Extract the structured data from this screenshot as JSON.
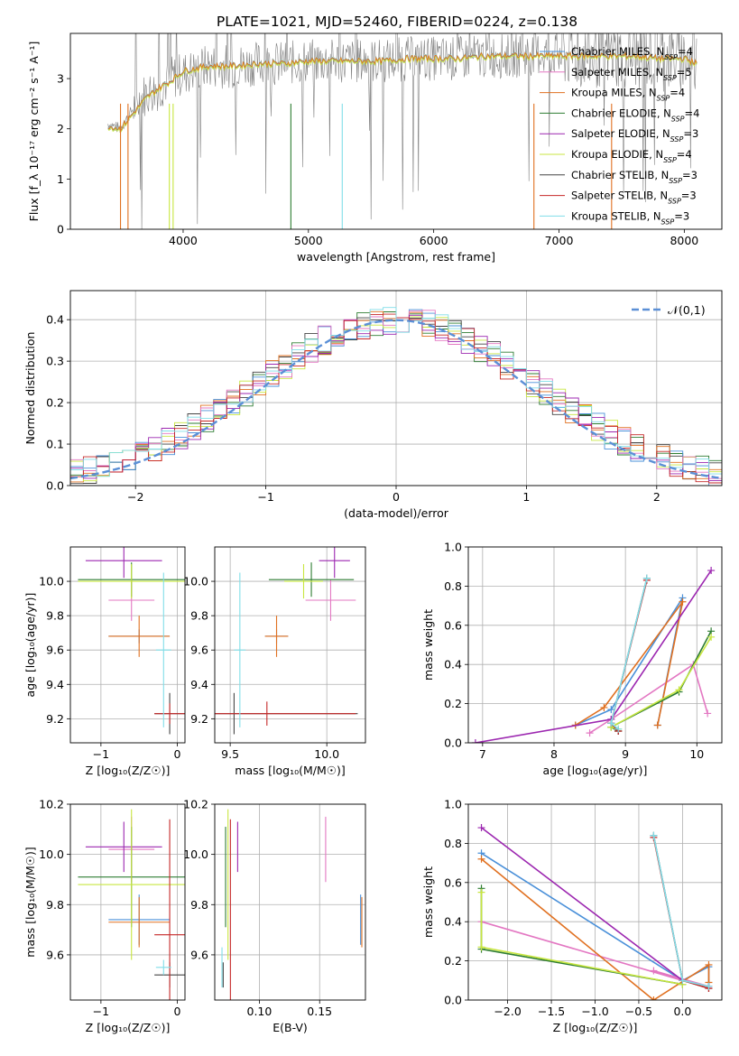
{
  "figure_title": "PLATE=1021, MJD=52460, FIBERID=0224, z=0.138",
  "series_names": [
    "Chabrier MILES, N_SSP=4",
    "Salpeter MILES, N_SSP=5",
    "Kroupa MILES, N_SSP=4",
    "Chabrier ELODIE, N_SSP=4",
    "Salpeter ELODIE, N_SSP=3",
    "Kroupa ELODIE, N_SSP=4",
    "Chabrier STELIB, N_SSP=3",
    "Salpeter STELIB, N_SSP=3",
    "Kroupa STELIB, N_SSP=3"
  ],
  "series_colors": [
    "#4a90d9",
    "#e377c2",
    "#e07020",
    "#2e7d32",
    "#9c27b0",
    "#c8e640",
    "#444444",
    "#c62828",
    "#80dee8"
  ],
  "chart_data": [
    {
      "id": "spectrum",
      "type": "line",
      "xlabel": "wavelength [Angstrom, rest frame]",
      "ylabel": "Flux [f_λ 10⁻¹⁷ erg cm⁻² s⁻¹ A⁻¹]",
      "xlim": [
        3100,
        8300
      ],
      "ylim": [
        0,
        3.9
      ],
      "xticks": [
        4000,
        5000,
        6000,
        7000,
        8000
      ],
      "yticks": [
        0,
        1,
        2,
        3
      ],
      "grid": false,
      "legend": "top-right",
      "data_series": {
        "name": "",
        "color": "#808080",
        "x": [
          3400,
          3500,
          3600,
          3700,
          3800,
          3900,
          4000,
          4200,
          4400,
          4600,
          4800,
          5000,
          5200,
          5400,
          5600,
          5800,
          6000,
          6200,
          6400,
          6600,
          6800,
          7000,
          7200,
          7400,
          7600,
          7800,
          8000,
          8100
        ],
        "y": [
          2.1,
          2.0,
          2.4,
          2.7,
          2.8,
          3.0,
          3.1,
          3.25,
          3.25,
          3.3,
          3.3,
          3.35,
          3.35,
          3.35,
          3.35,
          3.4,
          3.4,
          3.4,
          3.45,
          3.45,
          3.5,
          3.5,
          3.45,
          3.5,
          3.45,
          3.45,
          3.4,
          3.3
        ]
      },
      "model_series": {
        "x": [
          3400,
          3500,
          3550,
          3600,
          3700,
          3800,
          3900,
          4000,
          4200,
          4400,
          4600,
          4800,
          5000,
          5200,
          5400,
          5600,
          5800,
          6000,
          6200,
          6400,
          6600,
          6800,
          7000,
          7200,
          7400,
          7600,
          7800,
          8000,
          8100
        ],
        "y": [
          2.05,
          2.0,
          2.15,
          2.3,
          2.6,
          2.8,
          2.95,
          3.15,
          3.25,
          3.25,
          3.3,
          3.3,
          3.35,
          3.35,
          3.35,
          3.35,
          3.4,
          3.4,
          3.4,
          3.45,
          3.45,
          3.45,
          3.45,
          3.45,
          3.45,
          3.45,
          3.4,
          3.4,
          3.3
        ]
      }
    },
    {
      "id": "residuals",
      "type": "histogram",
      "xlabel": "(data-model)/error",
      "ylabel": "Normed distribution",
      "xlim": [
        -2.5,
        2.5
      ],
      "ylim": [
        0,
        0.47
      ],
      "xticks": [
        -2,
        -1,
        0,
        1,
        2
      ],
      "yticks": [
        0.0,
        0.1,
        0.2,
        0.3,
        0.4
      ],
      "grid": true,
      "legend": "top-right",
      "reference_curve": {
        "name": "𝒩(0,1)",
        "color": "#5b8fd6",
        "mean": 0,
        "sigma": 1
      },
      "bin_width": 0.1
    },
    {
      "id": "age_vs_Z",
      "type": "errorbar",
      "xlabel": "Z [log₁₀(Z/Z☉)]",
      "ylabel": "age  [log₁₀(age/yr)]",
      "xlim": [
        -1.4,
        0.1
      ],
      "ylim": [
        9.06,
        10.2
      ],
      "xticks": [
        -1,
        0
      ],
      "yticks": [
        9.2,
        9.4,
        9.6,
        9.8,
        10.0
      ],
      "grid": true,
      "points": [
        {
          "s": 0,
          "x": -0.5,
          "xerr": 0.4,
          "y": 9.68,
          "yerr": 0.04
        },
        {
          "s": 1,
          "x": -0.6,
          "xerr": 0.3,
          "y": 9.89,
          "yerr": 0.12
        },
        {
          "s": 2,
          "x": -0.5,
          "xerr": 0.4,
          "y": 9.68,
          "yerr": 0.12
        },
        {
          "s": 3,
          "x": -0.6,
          "xerr": 0.7,
          "y": 10.01,
          "yerr": 0.1
        },
        {
          "s": 4,
          "x": -0.7,
          "xerr": 0.5,
          "y": 10.12,
          "yerr": 0.1
        },
        {
          "s": 5,
          "x": -0.6,
          "xerr": 0.7,
          "y": 10.0,
          "yerr": 0.1
        },
        {
          "s": 6,
          "x": -0.1,
          "xerr": 0.2,
          "y": 9.23,
          "yerr": 0.12
        },
        {
          "s": 7,
          "x": -0.1,
          "xerr": 0.2,
          "y": 9.23,
          "yerr": 0.06
        },
        {
          "s": 8,
          "x": -0.18,
          "xerr": 0.1,
          "y": 9.6,
          "yerr": 0.45
        }
      ]
    },
    {
      "id": "age_vs_mass",
      "type": "errorbar",
      "xlabel": "mass [log₁₀(M/M☉)]",
      "ylabel": "",
      "xlim": [
        9.42,
        10.2
      ],
      "ylim": [
        9.06,
        10.2
      ],
      "xticks": [
        9.5,
        10.0
      ],
      "yticks": [
        9.2,
        9.4,
        9.6,
        9.8,
        10.0
      ],
      "grid": true,
      "points": [
        {
          "s": 0,
          "x": 9.74,
          "xerr": 0.06,
          "y": 9.68,
          "yerr": 0.04
        },
        {
          "s": 1,
          "x": 10.02,
          "xerr": 0.13,
          "y": 9.89,
          "yerr": 0.12
        },
        {
          "s": 2,
          "x": 9.74,
          "xerr": 0.06,
          "y": 9.68,
          "yerr": 0.12
        },
        {
          "s": 3,
          "x": 9.92,
          "xerr": 0.22,
          "y": 10.01,
          "yerr": 0.1
        },
        {
          "s": 4,
          "x": 10.04,
          "xerr": 0.08,
          "y": 10.12,
          "yerr": 0.1
        },
        {
          "s": 5,
          "x": 9.88,
          "xerr": 0.1,
          "y": 10.0,
          "yerr": 0.1
        },
        {
          "s": 6,
          "x": 9.52,
          "xerr": 0.64,
          "y": 9.23,
          "yerr": 0.12
        },
        {
          "s": 7,
          "x": 9.69,
          "xerr": 0.46,
          "y": 9.23,
          "yerr": 0.07
        },
        {
          "s": 8,
          "x": 9.55,
          "xerr": 0.03,
          "y": 9.6,
          "yerr": 0.45
        }
      ]
    },
    {
      "id": "weight_vs_age",
      "type": "line",
      "xlabel": "age  [log₁₀(age/yr)]",
      "ylabel": "mass weight",
      "xlim": [
        6.8,
        10.35
      ],
      "ylim": [
        0,
        1
      ],
      "xticks": [
        7,
        8,
        9,
        10
      ],
      "yticks": [
        0.0,
        0.2,
        0.4,
        0.6,
        0.8,
        1.0
      ],
      "grid": true,
      "series": [
        {
          "s": 0,
          "x": [
            8.3,
            8.8,
            9.8,
            9.45
          ],
          "y": [
            0.09,
            0.17,
            0.74,
            0.09
          ]
        },
        {
          "s": 1,
          "x": [
            8.5,
            8.8,
            9.95,
            10.15
          ],
          "y": [
            0.05,
            0.12,
            0.4,
            0.15
          ]
        },
        {
          "s": 2,
          "x": [
            8.3,
            8.7,
            9.8,
            9.45
          ],
          "y": [
            0.09,
            0.18,
            0.72,
            0.09
          ]
        },
        {
          "s": 3,
          "x": [
            8.9,
            8.8,
            9.75,
            10.2
          ],
          "y": [
            0.06,
            0.08,
            0.26,
            0.57
          ]
        },
        {
          "s": 4,
          "x": [
            6.9,
            8.8,
            10.2
          ],
          "y": [
            0.0,
            0.12,
            0.88
          ]
        },
        {
          "s": 5,
          "x": [
            8.9,
            8.8,
            9.75,
            10.2
          ],
          "y": [
            0.07,
            0.08,
            0.27,
            0.54
          ]
        },
        {
          "s": 6,
          "x": [
            8.9,
            8.8,
            9.3
          ],
          "y": [
            0.06,
            0.1,
            0.84
          ]
        },
        {
          "s": 7,
          "x": [
            8.9,
            8.8,
            9.3
          ],
          "y": [
            0.06,
            0.1,
            0.83
          ]
        },
        {
          "s": 8,
          "x": [
            8.9,
            8.8,
            9.3
          ],
          "y": [
            0.07,
            0.1,
            0.84
          ]
        }
      ]
    },
    {
      "id": "mass_vs_Z",
      "type": "errorbar",
      "xlabel": "Z [log₁₀(Z/Z☉)]",
      "ylabel": "mass [log₁₀(M/M☉)]",
      "xlim": [
        -1.4,
        0.1
      ],
      "ylim": [
        9.42,
        10.2
      ],
      "xticks": [
        -1,
        0
      ],
      "yticks": [
        9.6,
        9.8,
        10.0,
        10.2
      ],
      "grid": true,
      "points": [
        {
          "s": 0,
          "x": -0.5,
          "xerr": 0.4,
          "y": 9.74,
          "yerr": 0.1
        },
        {
          "s": 1,
          "x": -0.6,
          "xerr": 0.3,
          "y": 10.02,
          "yerr": 0.13
        },
        {
          "s": 2,
          "x": -0.5,
          "xerr": 0.4,
          "y": 9.73,
          "yerr": 0.1
        },
        {
          "s": 3,
          "x": -0.6,
          "xerr": 0.7,
          "y": 9.91,
          "yerr": 0.2
        },
        {
          "s": 4,
          "x": -0.7,
          "xerr": 0.5,
          "y": 10.03,
          "yerr": 0.1
        },
        {
          "s": 5,
          "x": -0.6,
          "xerr": 0.7,
          "y": 9.88,
          "yerr": 0.3
        },
        {
          "s": 6,
          "x": -0.1,
          "xerr": 0.2,
          "y": 9.52,
          "yerr": 0.05
        },
        {
          "s": 7,
          "x": -0.1,
          "xerr": 0.2,
          "y": 9.68,
          "yerr": 0.46
        },
        {
          "s": 8,
          "x": -0.18,
          "xerr": 0.1,
          "y": 9.55,
          "yerr": 0.03
        }
      ]
    },
    {
      "id": "mass_vs_ebv",
      "type": "errorbar",
      "xlabel": "E(B-V)",
      "ylabel": "",
      "xlim": [
        0.063,
        0.188
      ],
      "ylim": [
        9.42,
        10.2
      ],
      "xticks": [
        0.1,
        0.15
      ],
      "yticks": [
        9.6,
        9.8,
        10.0,
        10.2
      ],
      "grid": true,
      "points": [
        {
          "s": 0,
          "x": 0.184,
          "y": 9.74,
          "yerr": 0.1
        },
        {
          "s": 1,
          "x": 0.155,
          "y": 10.02,
          "yerr": 0.13
        },
        {
          "s": 2,
          "x": 0.185,
          "y": 9.73,
          "yerr": 0.1
        },
        {
          "s": 3,
          "x": 0.072,
          "y": 9.91,
          "yerr": 0.2
        },
        {
          "s": 4,
          "x": 0.082,
          "y": 10.03,
          "yerr": 0.1
        },
        {
          "s": 5,
          "x": 0.074,
          "y": 9.88,
          "yerr": 0.3
        },
        {
          "s": 6,
          "x": 0.07,
          "y": 9.52,
          "yerr": 0.05
        },
        {
          "s": 7,
          "x": 0.076,
          "y": 9.68,
          "yerr": 0.46
        },
        {
          "s": 8,
          "x": 0.069,
          "y": 9.55,
          "yerr": 0.08
        }
      ]
    },
    {
      "id": "weight_vs_Z",
      "type": "line",
      "xlabel": "Z [log₁₀(Z/Z☉)]",
      "ylabel": "mass weight",
      "xlim": [
        -2.45,
        0.45
      ],
      "ylim": [
        0,
        1
      ],
      "xticks": [
        -2.0,
        -1.5,
        -1.0,
        -0.5,
        0.0
      ],
      "yticks": [
        0.0,
        0.2,
        0.4,
        0.6,
        0.8,
        1.0
      ],
      "grid": true,
      "series": [
        {
          "s": 0,
          "x": [
            -2.3,
            0.0,
            0.3,
            0.3
          ],
          "y": [
            0.75,
            0.1,
            0.17,
            0.07
          ]
        },
        {
          "s": 1,
          "x": [
            -2.3,
            0.0,
            -0.33,
            0.3
          ],
          "y": [
            0.4,
            0.1,
            0.15,
            0.07
          ]
        },
        {
          "s": 2,
          "x": [
            -2.3,
            -0.33,
            0.3,
            0.3
          ],
          "y": [
            0.72,
            0.0,
            0.18,
            0.09
          ]
        },
        {
          "s": 3,
          "x": [
            -2.3,
            -2.3,
            0.0
          ],
          "y": [
            0.57,
            0.26,
            0.08
          ]
        },
        {
          "s": 4,
          "x": [
            -2.3,
            0.0
          ],
          "y": [
            0.88,
            0.1
          ]
        },
        {
          "s": 5,
          "x": [
            -2.3,
            -2.3,
            0.0
          ],
          "y": [
            0.55,
            0.27,
            0.08
          ]
        },
        {
          "s": 6,
          "x": [
            -0.33,
            0.0,
            0.3
          ],
          "y": [
            0.84,
            0.1,
            0.06
          ]
        },
        {
          "s": 7,
          "x": [
            -0.33,
            0.0,
            0.3
          ],
          "y": [
            0.83,
            0.1,
            0.06
          ]
        },
        {
          "s": 8,
          "x": [
            -0.33,
            0.0,
            0.3
          ],
          "y": [
            0.84,
            0.1,
            0.07
          ]
        }
      ]
    }
  ]
}
